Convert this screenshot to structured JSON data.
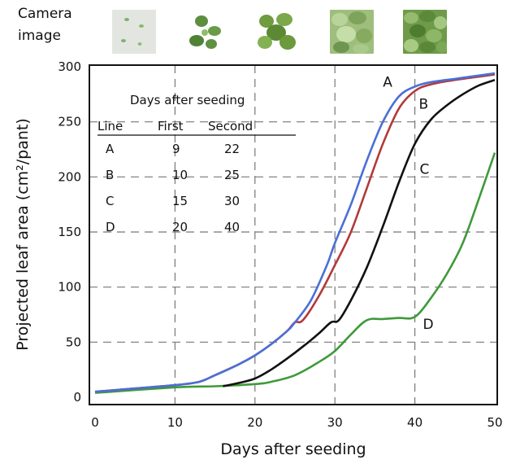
{
  "header": {
    "camera_label_line1": "Camera",
    "camera_label_line2": "image",
    "thumbnails": [
      {
        "name": "seedling-sparse-icon"
      },
      {
        "name": "small-plant-icon"
      },
      {
        "name": "medium-plant-icon"
      },
      {
        "name": "dense-plant-icon"
      },
      {
        "name": "full-canopy-icon"
      }
    ]
  },
  "table": {
    "title": "Days after seeding",
    "headers": [
      "Line",
      "First",
      "Second"
    ],
    "rows": [
      [
        "A",
        "9",
        "22"
      ],
      [
        "B",
        "10",
        "25"
      ],
      [
        "C",
        "15",
        "30"
      ],
      [
        "D",
        "20",
        "40"
      ]
    ]
  },
  "chart_data": {
    "type": "line",
    "xlabel": "Days after seeding",
    "ylabel": "Projected leaf area (cm²/pant)",
    "xlim": [
      0,
      50
    ],
    "ylim": [
      0,
      300
    ],
    "xticks": [
      "0",
      "10",
      "20",
      "30",
      "40",
      "50"
    ],
    "yticks": [
      "0",
      "50",
      "100",
      "150",
      "200",
      "250",
      "300"
    ],
    "grid": "dashed",
    "series": [
      {
        "name": "A",
        "color": "#4a6fd6",
        "x": [
          0,
          5,
          10,
          13,
          15,
          18,
          20,
          22,
          24,
          25,
          27,
          29,
          30,
          32,
          34,
          36,
          38,
          40,
          42,
          45,
          48,
          50
        ],
        "y": [
          5,
          8,
          11,
          14,
          20,
          30,
          38,
          48,
          60,
          68,
          88,
          120,
          140,
          175,
          215,
          250,
          273,
          282,
          286,
          289,
          292,
          294
        ]
      },
      {
        "name": "B",
        "color": "#b23a3a",
        "x": [
          0,
          5,
          10,
          13,
          15,
          18,
          20,
          22,
          24,
          25,
          26,
          28,
          30,
          32,
          34,
          36,
          38,
          40,
          42,
          45,
          48,
          50
        ],
        "y": [
          5,
          8,
          11,
          14,
          20,
          30,
          38,
          48,
          60,
          68,
          70,
          92,
          120,
          150,
          190,
          230,
          262,
          278,
          284,
          288,
          291,
          293
        ]
      },
      {
        "name": "C",
        "color": "#111111",
        "x": [
          16,
          18,
          20,
          22,
          24,
          26,
          28,
          29.5,
          30.5,
          32,
          34,
          36,
          38,
          40,
          42,
          44,
          46,
          48,
          50
        ],
        "y": [
          10,
          13,
          17,
          25,
          35,
          46,
          58,
          68,
          70,
          88,
          118,
          155,
          195,
          230,
          252,
          265,
          275,
          283,
          288
        ]
      },
      {
        "name": "D",
        "color": "#3f9a3a",
        "x": [
          0,
          10,
          15,
          20,
          22,
          25,
          28,
          30,
          32,
          34,
          36,
          38,
          40,
          42,
          44,
          46,
          48,
          50
        ],
        "y": [
          4,
          9,
          10,
          12,
          14,
          20,
          32,
          42,
          57,
          70,
          71,
          72,
          73,
          90,
          112,
          140,
          180,
          222
        ]
      }
    ]
  }
}
